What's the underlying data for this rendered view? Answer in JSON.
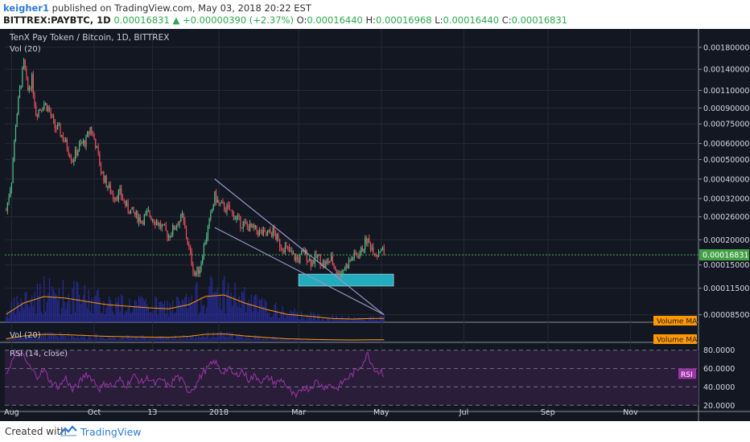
{
  "header": {
    "user": "keigher1",
    "published": "published on TradingView.com, May 03, 2018 20:22 EST",
    "symbol": "BITTREX:PAYBTC, 1D",
    "last": "0.00016831",
    "change": "+0.00000390 (+2.37%)",
    "o_label": "O:",
    "o_value": "0.00016440",
    "h_label": "H:",
    "h_value": "0.00016968",
    "l_label": "L:",
    "l_value": "0.00016440",
    "c_label": "C:",
    "c_value": "0.00016831"
  },
  "footer": {
    "created_with": "Created with",
    "brand": "TradingView"
  },
  "colors": {
    "background": "#131722",
    "up_candle": "#53b987",
    "down_candle": "#eb4d5c",
    "volume": "#2b2fa8",
    "volume_ma": "#ff9800",
    "rsi": "#9a35a5",
    "trendline": "#9598c7",
    "support_box": "#26c6da",
    "price_label": "#43a047"
  },
  "chart_data": {
    "type": "candlestick",
    "title": "TenX Pay Token / Bitcoin, 1D, BITTREX",
    "volume_label": "Vol (20)",
    "volume_ma_label": "Volume MA",
    "volume_pane_label": "Vol (20)",
    "rsi_label": "RSI (14, close)",
    "rsi_tag": "RSI",
    "last_price_label": "0.00016831",
    "y_ticks": [
      "0.00180000",
      "0.00140000",
      "0.00110000",
      "0.00090000",
      "0.00075000",
      "0.00060000",
      "0.00050000",
      "0.00040000",
      "0.00032000",
      "0.00026000",
      "0.00020000",
      "0.00015000",
      "0.00011500",
      "0.00008500"
    ],
    "y_tick_values": [
      0.0018,
      0.0014,
      0.0011,
      0.0009,
      0.00075,
      0.0006,
      0.0005,
      0.0004,
      0.00032,
      0.00026,
      0.0002,
      0.00015,
      0.000115,
      8.5e-05
    ],
    "y_scale": "log",
    "ylim": [
      7.8e-05,
      0.0021
    ],
    "rsi_ticks": [
      "80.0000",
      "60.0000",
      "40.0000",
      "20.0000"
    ],
    "rsi_tick_values": [
      80,
      60,
      40,
      20
    ],
    "rsi_ylim": [
      15,
      85
    ],
    "x_ticks": [
      "Aug",
      "Oct",
      "13",
      "2018",
      "Mar",
      "May",
      "Jul",
      "Sep",
      "Nov"
    ],
    "x_tick_dates": [
      "2017-08-01",
      "2017-10-01",
      "2017-11-13",
      "2018-01-01",
      "2018-03-01",
      "2018-05-01",
      "2018-07-01",
      "2018-09-01",
      "2018-11-01"
    ],
    "x_range": [
      "2017-07-27",
      "2018-12-20"
    ],
    "price_path": [
      [
        "2017-07-28",
        0.00028
      ],
      [
        "2017-08-01",
        0.0004
      ],
      [
        "2017-08-04",
        0.00075
      ],
      [
        "2017-08-07",
        0.0011
      ],
      [
        "2017-08-10",
        0.0015
      ],
      [
        "2017-08-13",
        0.0011
      ],
      [
        "2017-08-16",
        0.00125
      ],
      [
        "2017-08-19",
        0.00085
      ],
      [
        "2017-08-22",
        0.0009
      ],
      [
        "2017-08-25",
        0.00095
      ],
      [
        "2017-08-28",
        0.0009
      ],
      [
        "2017-09-02",
        0.00072
      ],
      [
        "2017-09-05",
        0.0007
      ],
      [
        "2017-09-10",
        0.0006
      ],
      [
        "2017-09-15",
        0.0005
      ],
      [
        "2017-09-20",
        0.00058
      ],
      [
        "2017-09-25",
        0.00062
      ],
      [
        "2017-09-28",
        0.00072
      ],
      [
        "2017-10-02",
        0.0006
      ],
      [
        "2017-10-06",
        0.00044
      ],
      [
        "2017-10-10",
        0.00038
      ],
      [
        "2017-10-15",
        0.00033
      ],
      [
        "2017-10-20",
        0.00034
      ],
      [
        "2017-10-25",
        0.00029
      ],
      [
        "2017-10-30",
        0.00027
      ],
      [
        "2017-11-05",
        0.00025
      ],
      [
        "2017-11-10",
        0.00027
      ],
      [
        "2017-11-15",
        0.00025
      ],
      [
        "2017-11-20",
        0.00023
      ],
      [
        "2017-11-25",
        0.00021
      ],
      [
        "2017-12-01",
        0.00024
      ],
      [
        "2017-12-05",
        0.00026
      ],
      [
        "2017-12-10",
        0.00018
      ],
      [
        "2017-12-14",
        0.000135
      ],
      [
        "2017-12-18",
        0.000145
      ],
      [
        "2017-12-22",
        0.0002
      ],
      [
        "2017-12-26",
        0.00026
      ],
      [
        "2017-12-29",
        0.00033
      ],
      [
        "2018-01-01",
        0.0003
      ],
      [
        "2018-01-05",
        0.00029
      ],
      [
        "2018-01-09",
        0.00028
      ],
      [
        "2018-01-13",
        0.00026
      ],
      [
        "2018-01-18",
        0.00024
      ],
      [
        "2018-01-24",
        0.00023
      ],
      [
        "2018-01-30",
        0.00022
      ],
      [
        "2018-02-05",
        0.00021
      ],
      [
        "2018-02-10",
        0.00022
      ],
      [
        "2018-02-15",
        0.00019
      ],
      [
        "2018-02-20",
        0.00018
      ],
      [
        "2018-02-25",
        0.000165
      ],
      [
        "2018-03-01",
        0.00016
      ],
      [
        "2018-03-05",
        0.000175
      ],
      [
        "2018-03-10",
        0.000155
      ],
      [
        "2018-03-15",
        0.000165
      ],
      [
        "2018-03-20",
        0.00015
      ],
      [
        "2018-03-25",
        0.00016
      ],
      [
        "2018-03-30",
        0.000135
      ],
      [
        "2018-04-05",
        0.000148
      ],
      [
        "2018-04-10",
        0.000165
      ],
      [
        "2018-04-15",
        0.00017
      ],
      [
        "2018-04-20",
        0.0002
      ],
      [
        "2018-04-25",
        0.00018
      ],
      [
        "2018-04-28",
        0.00017
      ],
      [
        "2018-05-01",
        0.000185
      ],
      [
        "2018-05-03",
        0.00016831
      ]
    ],
    "rsi_path": [
      [
        "2017-07-28",
        55
      ],
      [
        "2017-08-02",
        70
      ],
      [
        "2017-08-06",
        78
      ],
      [
        "2017-08-10",
        72
      ],
      [
        "2017-08-15",
        60
      ],
      [
        "2017-08-20",
        52
      ],
      [
        "2017-08-25",
        58
      ],
      [
        "2017-08-30",
        45
      ],
      [
        "2017-09-05",
        40
      ],
      [
        "2017-09-10",
        50
      ],
      [
        "2017-09-15",
        36
      ],
      [
        "2017-09-20",
        44
      ],
      [
        "2017-09-25",
        55
      ],
      [
        "2017-09-30",
        48
      ],
      [
        "2017-10-05",
        38
      ],
      [
        "2017-10-10",
        45
      ],
      [
        "2017-10-15",
        40
      ],
      [
        "2017-10-20",
        48
      ],
      [
        "2017-10-25",
        42
      ],
      [
        "2017-10-30",
        52
      ],
      [
        "2017-11-05",
        45
      ],
      [
        "2017-11-10",
        50
      ],
      [
        "2017-11-15",
        43
      ],
      [
        "2017-11-20",
        48
      ],
      [
        "2017-11-25",
        40
      ],
      [
        "2017-12-01",
        52
      ],
      [
        "2017-12-05",
        46
      ],
      [
        "2017-12-10",
        35
      ],
      [
        "2017-12-15",
        42
      ],
      [
        "2017-12-20",
        55
      ],
      [
        "2017-12-25",
        62
      ],
      [
        "2017-12-29",
        68
      ],
      [
        "2018-01-03",
        56
      ],
      [
        "2018-01-08",
        60
      ],
      [
        "2018-01-13",
        52
      ],
      [
        "2018-01-18",
        58
      ],
      [
        "2018-01-23",
        48
      ],
      [
        "2018-01-28",
        52
      ],
      [
        "2018-02-02",
        46
      ],
      [
        "2018-02-07",
        50
      ],
      [
        "2018-02-12",
        44
      ],
      [
        "2018-02-17",
        48
      ],
      [
        "2018-02-22",
        36
      ],
      [
        "2018-02-27",
        28
      ],
      [
        "2018-03-04",
        40
      ],
      [
        "2018-03-09",
        38
      ],
      [
        "2018-03-14",
        46
      ],
      [
        "2018-03-19",
        40
      ],
      [
        "2018-03-24",
        42
      ],
      [
        "2018-03-29",
        38
      ],
      [
        "2018-04-03",
        46
      ],
      [
        "2018-04-08",
        52
      ],
      [
        "2018-04-13",
        58
      ],
      [
        "2018-04-18",
        68
      ],
      [
        "2018-04-21",
        76
      ],
      [
        "2018-04-25",
        62
      ],
      [
        "2018-04-29",
        56
      ],
      [
        "2018-05-01",
        58
      ],
      [
        "2018-05-03",
        54
      ]
    ],
    "volume_ma_path": [
      [
        "2017-07-28",
        0.25
      ],
      [
        "2017-08-10",
        0.6
      ],
      [
        "2017-08-25",
        0.8
      ],
      [
        "2017-09-10",
        0.75
      ],
      [
        "2017-09-25",
        0.65
      ],
      [
        "2017-10-10",
        0.55
      ],
      [
        "2017-10-25",
        0.5
      ],
      [
        "2017-11-10",
        0.45
      ],
      [
        "2017-11-25",
        0.42
      ],
      [
        "2017-12-10",
        0.55
      ],
      [
        "2017-12-22",
        0.8
      ],
      [
        "2018-01-05",
        0.85
      ],
      [
        "2018-01-20",
        0.6
      ],
      [
        "2018-02-05",
        0.4
      ],
      [
        "2018-02-20",
        0.25
      ],
      [
        "2018-03-10",
        0.18
      ],
      [
        "2018-03-25",
        0.12
      ],
      [
        "2018-04-10",
        0.1
      ],
      [
        "2018-04-25",
        0.12
      ],
      [
        "2018-05-03",
        0.12
      ]
    ],
    "trendlines": [
      {
        "from": [
          "2017-12-29",
          0.0004
        ],
        "to": [
          "2018-05-03",
          8.5e-05
        ]
      },
      {
        "from": [
          "2017-12-29",
          0.00023
        ],
        "to": [
          "2018-05-03",
          8.5e-05
        ]
      }
    ],
    "support_zone": {
      "x_start": "2018-03-01",
      "x_end": "2018-05-10",
      "y_top": 0.000135,
      "y_bottom": 0.000118
    }
  }
}
